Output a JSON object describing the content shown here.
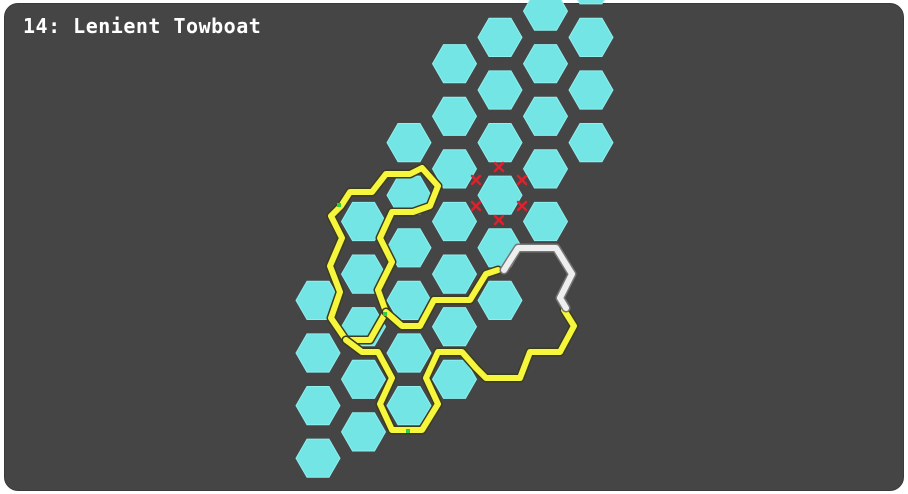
{
  "puzzle": {
    "title": "14: Lenient Towboat"
  },
  "colors": {
    "background": "#454545",
    "hex_fill": "#73e5e5",
    "hex_stroke": "#8ff0f0",
    "path_yellow": "#f6f63c",
    "path_outline": "#3c3c1e",
    "path_white": "#eeeeee",
    "marker_green": "#2ecc40",
    "cross_red": "#e0202c"
  },
  "board": {
    "columns": [
      {
        "col": 0,
        "rows": [
          4,
          5,
          6,
          7
        ]
      },
      {
        "col": 1,
        "rows": [
          3,
          4,
          5,
          6,
          7
        ]
      },
      {
        "col": 2,
        "rows": [
          2,
          3,
          4,
          5,
          6,
          7
        ]
      },
      {
        "col": 3,
        "rows": [
          1,
          2,
          3,
          4,
          5,
          6,
          7
        ]
      },
      {
        "col": 4,
        "rows": [
          1,
          2,
          3,
          4,
          5,
          6
        ]
      },
      {
        "col": 5,
        "rows": [
          1,
          2,
          3,
          4,
          5
        ]
      },
      {
        "col": 6,
        "rows": [
          1,
          2,
          3,
          4
        ]
      }
    ]
  }
}
